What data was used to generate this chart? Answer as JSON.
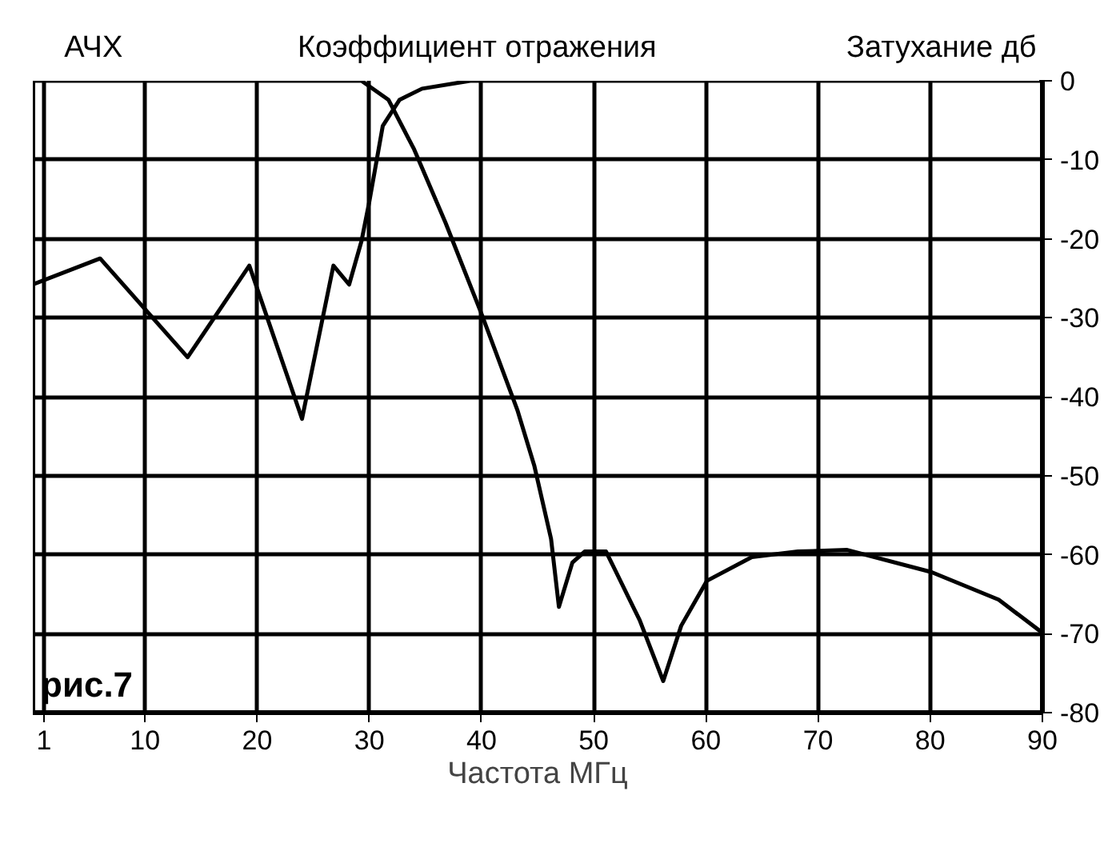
{
  "chart_data": {
    "type": "line",
    "xlabel": "Частота МГц",
    "ylabel": "Затухание дб",
    "annotations": [
      "рис.7"
    ],
    "xlim": [
      0,
      90
    ],
    "xticks": [
      1,
      10,
      20,
      30,
      40,
      50,
      60,
      70,
      80,
      90
    ],
    "ylim": [
      -80,
      0
    ],
    "yticks": [
      0,
      -10,
      -20,
      -30,
      -40,
      -50,
      -60,
      -70,
      -80
    ],
    "grid": true,
    "marker": "none",
    "line_style": "solid",
    "series": [
      {
        "name": "АЧХ",
        "color": "#000000",
        "x": [
          0,
          10,
          20,
          29.3,
          31.7,
          34,
          36.8,
          40,
          43.2,
          44.7,
          46.2,
          46.9,
          48.1,
          49.2,
          51.1,
          54.1,
          56.2,
          57.8,
          60.1,
          64.1,
          68.2,
          72.6,
          80.1,
          86.1,
          90
        ],
        "values": [
          0,
          0,
          0,
          0,
          -2.4,
          -8.7,
          -18,
          -29.5,
          -41.7,
          -48.7,
          -58,
          -66.6,
          -61,
          -59.6,
          -59.6,
          -68.3,
          -76,
          -69,
          -63.3,
          -60.3,
          -59.6,
          -59.4,
          -62.2,
          -65.7,
          -69.9
        ]
      },
      {
        "name": "Коэффициент отражения",
        "color": "#000000",
        "x": [
          0,
          6,
          13.8,
          19.3,
          24,
          26.8,
          28.2,
          29.3,
          30,
          31.2,
          32.7,
          34.7,
          39,
          50,
          60,
          70,
          80,
          90
        ],
        "values": [
          -25.8,
          -22.5,
          -35,
          -23.4,
          -42.8,
          -23.4,
          -25.8,
          -20.3,
          -15.3,
          -5.7,
          -2.4,
          -1,
          0,
          0,
          0,
          0,
          0,
          0
        ]
      }
    ]
  }
}
